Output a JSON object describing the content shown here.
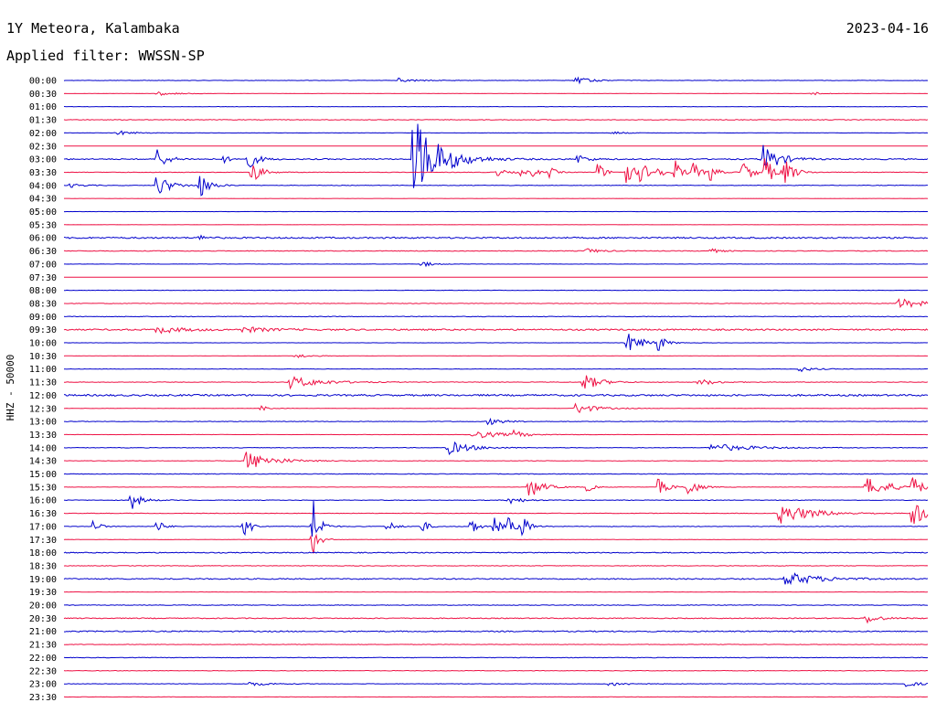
{
  "header": {
    "station": "1Y Meteora, Kalambaka",
    "date": "2023-04-16",
    "filter": "Applied filter: WWSSN-SP"
  },
  "chart_data": {
    "type": "line",
    "title": "1Y Meteora, Kalambaka",
    "ylabel": "HHZ - 50000",
    "trace_colors": [
      "#0000cc",
      "#ee1144"
    ],
    "window_minutes": 30,
    "baseline_noise": [
      0.2,
      0.1,
      0.18,
      0.35,
      0.15,
      0.1,
      0.6,
      0.3,
      0.28,
      0.1,
      0.15,
      0.1,
      0.8,
      0.4,
      0.15,
      0.1,
      0.22,
      0.3,
      0.35,
      0.8,
      0.15,
      0.1,
      0.25,
      0.3,
      0.9,
      0.2,
      0.3,
      0.12,
      0.28,
      0.25,
      0.35,
      0.2,
      0.3,
      0.25,
      0.3,
      0.2,
      0.5,
      0.3,
      0.6,
      0.2,
      0.3,
      0.5,
      0.6,
      0.25,
      0.3,
      0.3,
      0.25,
      0.15
    ],
    "rows": [
      "00:00",
      "00:30",
      "01:00",
      "01:30",
      "02:00",
      "02:30",
      "03:00",
      "03:30",
      "04:00",
      "04:30",
      "05:00",
      "05:30",
      "06:00",
      "06:30",
      "07:00",
      "07:30",
      "08:00",
      "08:30",
      "09:00",
      "09:30",
      "10:00",
      "10:30",
      "11:00",
      "11:30",
      "12:00",
      "12:30",
      "13:00",
      "13:30",
      "14:00",
      "14:30",
      "15:00",
      "15:30",
      "16:00",
      "16:30",
      "17:00",
      "17:30",
      "18:00",
      "18:30",
      "19:00",
      "19:30",
      "20:00",
      "20:30",
      "21:00",
      "21:30",
      "22:00",
      "22:30",
      "23:00",
      "23:30"
    ],
    "events": [
      {
        "row": 0,
        "minute": 11.6,
        "amplitude": 2.5,
        "duration": 0.6
      },
      {
        "row": 0,
        "minute": 17.7,
        "amplitude": 4.0,
        "duration": 0.5
      },
      {
        "row": 1,
        "minute": 3.2,
        "amplitude": 2.5,
        "duration": 0.6
      },
      {
        "row": 1,
        "minute": 25.9,
        "amplitude": 2.5,
        "duration": 0.3
      },
      {
        "row": 4,
        "minute": 1.8,
        "amplitude": 3.0,
        "duration": 0.5
      },
      {
        "row": 4,
        "minute": 19.0,
        "amplitude": 2.0,
        "duration": 0.4
      },
      {
        "row": 6,
        "minute": 3.2,
        "amplitude": 14.0,
        "duration": 0.3
      },
      {
        "row": 6,
        "minute": 5.5,
        "amplitude": 5.0,
        "duration": 0.2
      },
      {
        "row": 6,
        "minute": 6.3,
        "amplitude": 14.0,
        "duration": 0.3
      },
      {
        "row": 6,
        "minute": 12.1,
        "amplitude": 50.0,
        "duration": 0.8
      },
      {
        "row": 6,
        "minute": 17.8,
        "amplitude": 6.0,
        "duration": 0.3
      },
      {
        "row": 6,
        "minute": 24.2,
        "amplitude": 18.0,
        "duration": 0.5
      },
      {
        "row": 7,
        "minute": 6.5,
        "amplitude": 14.0,
        "duration": 0.3
      },
      {
        "row": 7,
        "minute": 14.9,
        "amplitude": 6.0,
        "duration": 0.3
      },
      {
        "row": 7,
        "minute": 15.8,
        "amplitude": 5.0,
        "duration": 0.2
      },
      {
        "row": 7,
        "minute": 16.2,
        "amplitude": 6.0,
        "duration": 0.2
      },
      {
        "row": 7,
        "minute": 16.8,
        "amplitude": 8.0,
        "duration": 0.2
      },
      {
        "row": 7,
        "minute": 18.5,
        "amplitude": 13.0,
        "duration": 0.2
      },
      {
        "row": 7,
        "minute": 19.5,
        "amplitude": 18.0,
        "duration": 0.2
      },
      {
        "row": 7,
        "minute": 20.0,
        "amplitude": 15.0,
        "duration": 0.2
      },
      {
        "row": 7,
        "minute": 20.5,
        "amplitude": 14.0,
        "duration": 0.2
      },
      {
        "row": 7,
        "minute": 21.2,
        "amplitude": 15.0,
        "duration": 0.2
      },
      {
        "row": 7,
        "minute": 21.8,
        "amplitude": 13.0,
        "duration": 0.2
      },
      {
        "row": 7,
        "minute": 22.4,
        "amplitude": 12.0,
        "duration": 0.2
      },
      {
        "row": 7,
        "minute": 23.5,
        "amplitude": 15.0,
        "duration": 0.3
      },
      {
        "row": 7,
        "minute": 24.3,
        "amplitude": 16.0,
        "duration": 0.3
      },
      {
        "row": 7,
        "minute": 25.0,
        "amplitude": 14.0,
        "duration": 0.3
      },
      {
        "row": 8,
        "minute": 3.2,
        "amplitude": 14.0,
        "duration": 0.4
      },
      {
        "row": 8,
        "minute": 4.7,
        "amplitude": 15.0,
        "duration": 0.3
      },
      {
        "row": 8,
        "minute": 0.2,
        "amplitude": 2.5,
        "duration": 0.4
      },
      {
        "row": 12,
        "minute": 4.7,
        "amplitude": 4.0,
        "duration": 0.2
      },
      {
        "row": 13,
        "minute": 18.1,
        "amplitude": 3.0,
        "duration": 0.4
      },
      {
        "row": 13,
        "minute": 22.4,
        "amplitude": 3.0,
        "duration": 0.3
      },
      {
        "row": 14,
        "minute": 12.4,
        "amplitude": 4.0,
        "duration": 0.3
      },
      {
        "row": 17,
        "minute": 28.9,
        "amplitude": 6.0,
        "duration": 0.8
      },
      {
        "row": 19,
        "minute": 3.2,
        "amplitude": 4.0,
        "duration": 0.8
      },
      {
        "row": 19,
        "minute": 6.2,
        "amplitude": 3.0,
        "duration": 0.8
      },
      {
        "row": 20,
        "minute": 19.5,
        "amplitude": 12.0,
        "duration": 0.5
      },
      {
        "row": 20,
        "minute": 20.6,
        "amplitude": 10.0,
        "duration": 0.2
      },
      {
        "row": 21,
        "minute": 8.0,
        "amplitude": 2.5,
        "duration": 0.5
      },
      {
        "row": 22,
        "minute": 25.5,
        "amplitude": 3.0,
        "duration": 0.4
      },
      {
        "row": 23,
        "minute": 7.8,
        "amplitude": 7.0,
        "duration": 1.0
      },
      {
        "row": 23,
        "minute": 18.0,
        "amplitude": 10.0,
        "duration": 0.5
      },
      {
        "row": 23,
        "minute": 22.0,
        "amplitude": 4.0,
        "duration": 0.5
      },
      {
        "row": 25,
        "minute": 6.8,
        "amplitude": 4.0,
        "duration": 0.2
      },
      {
        "row": 25,
        "minute": 17.7,
        "amplitude": 7.0,
        "duration": 0.6
      },
      {
        "row": 26,
        "minute": 14.7,
        "amplitude": 4.0,
        "duration": 0.5
      },
      {
        "row": 27,
        "minute": 14.1,
        "amplitude": 5.0,
        "duration": 1.0
      },
      {
        "row": 27,
        "minute": 15.6,
        "amplitude": 4.0,
        "duration": 0.3
      },
      {
        "row": 28,
        "minute": 13.3,
        "amplitude": 8.0,
        "duration": 0.7
      },
      {
        "row": 28,
        "minute": 22.4,
        "amplitude": 5.0,
        "duration": 1.2
      },
      {
        "row": 29,
        "minute": 6.3,
        "amplitude": 11.0,
        "duration": 0.8
      },
      {
        "row": 31,
        "minute": 16.1,
        "amplitude": 14.0,
        "duration": 0.4
      },
      {
        "row": 31,
        "minute": 18.1,
        "amplitude": 7.0,
        "duration": 0.2
      },
      {
        "row": 31,
        "minute": 20.6,
        "amplitude": 10.0,
        "duration": 0.3
      },
      {
        "row": 31,
        "minute": 21.6,
        "amplitude": 12.0,
        "duration": 0.3
      },
      {
        "row": 31,
        "minute": 27.8,
        "amplitude": 11.0,
        "duration": 0.8
      },
      {
        "row": 31,
        "minute": 29.4,
        "amplitude": 12.0,
        "duration": 0.3
      },
      {
        "row": 32,
        "minute": 2.3,
        "amplitude": 12.0,
        "duration": 0.3
      },
      {
        "row": 32,
        "minute": 15.4,
        "amplitude": 5.0,
        "duration": 0.4
      },
      {
        "row": 33,
        "minute": 24.8,
        "amplitude": 12.0,
        "duration": 1.0
      },
      {
        "row": 33,
        "minute": 29.4,
        "amplitude": 14.0,
        "duration": 0.6
      },
      {
        "row": 34,
        "minute": 1.0,
        "amplitude": 8.0,
        "duration": 0.2
      },
      {
        "row": 34,
        "minute": 3.2,
        "amplitude": 9.0,
        "duration": 0.2
      },
      {
        "row": 34,
        "minute": 6.2,
        "amplitude": 20.0,
        "duration": 0.2
      },
      {
        "row": 34,
        "minute": 8.6,
        "amplitude": 40.0,
        "duration": 0.2
      },
      {
        "row": 34,
        "minute": 11.2,
        "amplitude": 9.0,
        "duration": 0.2
      },
      {
        "row": 34,
        "minute": 12.4,
        "amplitude": 9.0,
        "duration": 0.2
      },
      {
        "row": 34,
        "minute": 14.1,
        "amplitude": 11.0,
        "duration": 0.2
      },
      {
        "row": 34,
        "minute": 14.9,
        "amplitude": 12.0,
        "duration": 0.2
      },
      {
        "row": 34,
        "minute": 15.4,
        "amplitude": 12.0,
        "duration": 0.2
      },
      {
        "row": 34,
        "minute": 15.9,
        "amplitude": 14.0,
        "duration": 0.2
      },
      {
        "row": 35,
        "minute": 8.6,
        "amplitude": 20.0,
        "duration": 0.2
      },
      {
        "row": 38,
        "minute": 25.0,
        "amplitude": 8.0,
        "duration": 1.0
      },
      {
        "row": 41,
        "minute": 27.8,
        "amplitude": 6.0,
        "duration": 0.4
      },
      {
        "row": 46,
        "minute": 6.4,
        "amplitude": 2.5,
        "duration": 0.6
      },
      {
        "row": 46,
        "minute": 18.9,
        "amplitude": 2.5,
        "duration": 0.6
      },
      {
        "row": 46,
        "minute": 29.2,
        "amplitude": 3.0,
        "duration": 0.5
      }
    ]
  }
}
